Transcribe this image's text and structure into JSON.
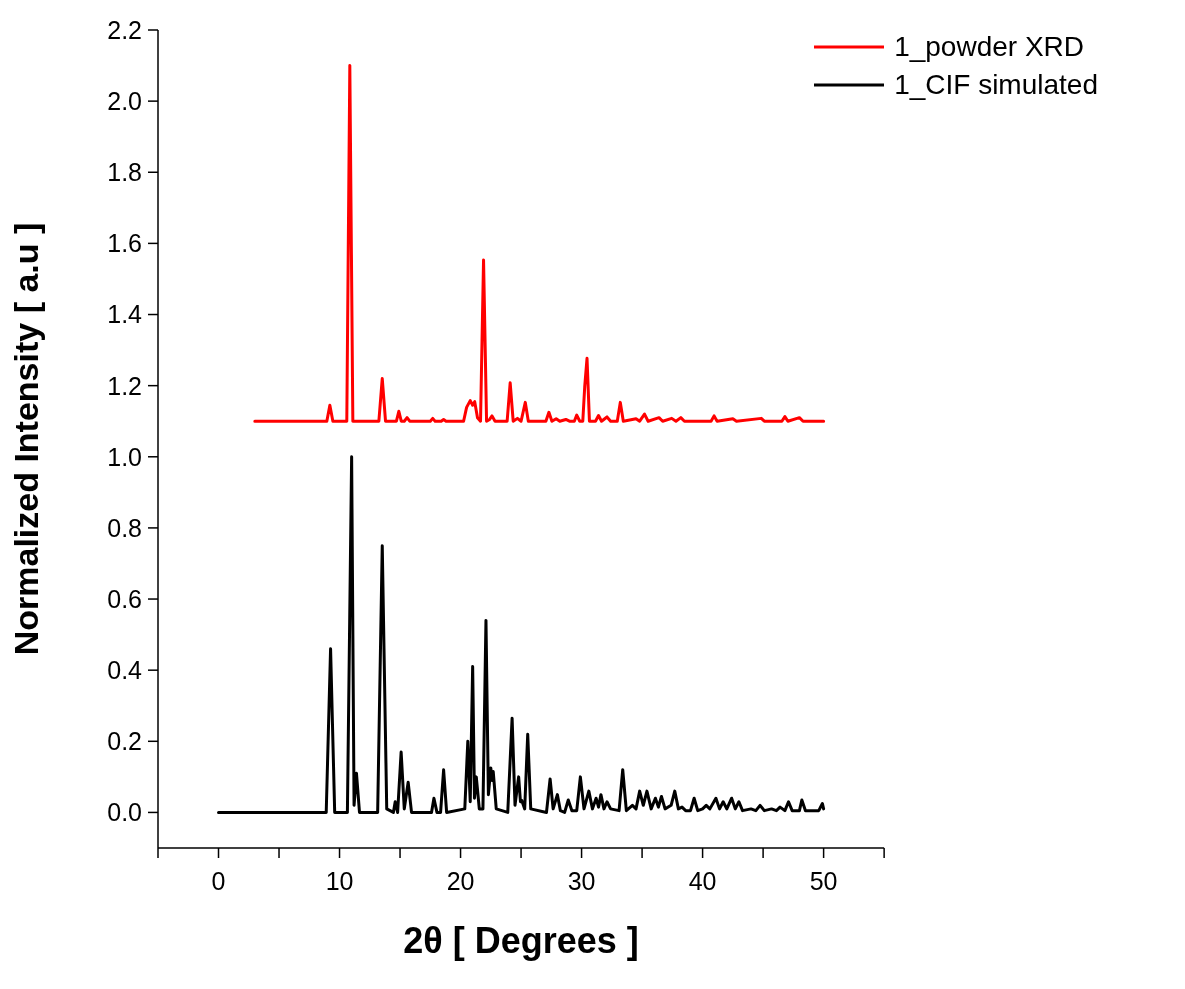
{
  "chart_data": {
    "type": "line",
    "xlabel": "2θ [ Degrees ]",
    "ylabel": "Normalized Intensity [ a.u ]",
    "xlim": [
      -5,
      55
    ],
    "ylim": [
      -0.1,
      2.2
    ],
    "xticks": [
      {
        "value": -5,
        "label": null
      },
      0,
      {
        "value": 5,
        "label": null
      },
      10,
      {
        "value": 15,
        "label": null
      },
      20,
      {
        "value": 25,
        "label": null
      },
      30,
      {
        "value": 35,
        "label": null
      },
      40,
      {
        "value": 45,
        "label": null
      },
      50,
      {
        "value": 55,
        "label": null
      }
    ],
    "yticks": [
      {
        "value": 0,
        "label": "0.0"
      },
      0.2,
      0.4,
      0.6,
      0.8,
      {
        "value": 1,
        "label": "1.0"
      },
      1.2,
      1.4,
      1.6,
      1.8,
      {
        "value": 2,
        "label": "2.0"
      },
      2.2
    ],
    "grid": false,
    "legend": "top right",
    "marker": "none",
    "line_style": "solid",
    "series": [
      {
        "name": "1_powder XRD",
        "color": "#ff0000",
        "x": [
          3,
          8.95,
          9.2,
          9.45,
          10.6,
          10.85,
          11.1,
          13.25,
          13.53,
          13.8,
          14.7,
          14.9,
          15.1,
          15.35,
          15.58,
          15.8,
          17.5,
          17.7,
          17.9,
          18.4,
          18.6,
          18.8,
          20.25,
          20.5,
          20.8,
          21.0,
          21.17,
          21.4,
          21.65,
          21.9,
          22.15,
          22.4,
          22.6,
          22.85,
          23.85,
          24.1,
          24.35,
          24.7,
          25.0,
          25.35,
          25.6,
          27.05,
          27.3,
          27.55,
          27.9,
          28.2,
          28.7,
          29.0,
          29.4,
          29.6,
          29.85,
          30.1,
          30.26,
          30.45,
          30.65,
          31.15,
          31.4,
          31.65,
          32.1,
          32.4,
          32.95,
          33.2,
          33.45,
          34.5,
          34.8,
          35.2,
          35.5,
          36.4,
          36.7,
          37.45,
          37.8,
          38.2,
          38.5,
          40.7,
          40.95,
          41.2,
          42.5,
          42.8,
          44.85,
          45.1,
          46.55,
          46.8,
          47.05,
          48.0,
          48.3,
          50.0
        ],
        "values": [
          1.1,
          1.1,
          1.145,
          1.1,
          1.1,
          2.1,
          1.1,
          1.1,
          1.22,
          1.1,
          1.1,
          1.128,
          1.1,
          1.1,
          1.11,
          1.1,
          1.1,
          1.108,
          1.1,
          1.1,
          1.105,
          1.1,
          1.1,
          1.139,
          1.158,
          1.145,
          1.155,
          1.11,
          1.1,
          1.553,
          1.1,
          1.105,
          1.115,
          1.1,
          1.1,
          1.208,
          1.1,
          1.108,
          1.1,
          1.153,
          1.1,
          1.1,
          1.125,
          1.1,
          1.107,
          1.1,
          1.105,
          1.1,
          1.1,
          1.117,
          1.1,
          1.1,
          1.197,
          1.277,
          1.1,
          1.1,
          1.116,
          1.1,
          1.112,
          1.1,
          1.1,
          1.153,
          1.1,
          1.107,
          1.1,
          1.12,
          1.1,
          1.11,
          1.1,
          1.108,
          1.1,
          1.11,
          1.1,
          1.1,
          1.115,
          1.1,
          1.107,
          1.1,
          1.108,
          1.1,
          1.1,
          1.113,
          1.1,
          1.11,
          1.1,
          1.1
        ]
      },
      {
        "name": "1_CIF simulated",
        "color": "#000000",
        "x": [
          0,
          8.9,
          9.26,
          9.6,
          10.65,
          11.0,
          11.2,
          11.4,
          11.65,
          13.15,
          13.53,
          13.9,
          14.45,
          14.6,
          14.8,
          15.09,
          15.35,
          15.67,
          15.95,
          17.6,
          17.8,
          18.05,
          18.35,
          18.6,
          18.85,
          20.35,
          20.6,
          20.8,
          21.0,
          21.15,
          21.3,
          21.55,
          21.85,
          22.1,
          22.3,
          22.5,
          22.6,
          22.7,
          22.95,
          23.9,
          24.26,
          24.5,
          24.8,
          24.95,
          25.05,
          25.3,
          25.55,
          25.8,
          27.1,
          27.4,
          27.65,
          28.0,
          28.25,
          28.6,
          28.9,
          29.2,
          29.6,
          29.9,
          30.2,
          30.6,
          30.9,
          31.2,
          31.4,
          31.6,
          31.85,
          32.1,
          32.4,
          33.1,
          33.4,
          33.7,
          34.2,
          34.5,
          34.8,
          35.1,
          35.4,
          35.75,
          36.1,
          36.35,
          36.6,
          36.9,
          37.4,
          37.7,
          38.0,
          38.3,
          38.6,
          39.0,
          39.3,
          39.6,
          40.0,
          40.3,
          40.6,
          41.1,
          41.4,
          41.7,
          42.0,
          42.4,
          42.7,
          43.0,
          43.3,
          44.0,
          44.4,
          44.75,
          45.1,
          45.7,
          46.1,
          46.4,
          46.8,
          47.1,
          47.4,
          48.0,
          48.2,
          48.5,
          49.6,
          49.9,
          50.0
        ],
        "values": [
          0,
          0,
          0.46,
          0,
          0,
          1.0,
          0.02,
          0.11,
          0,
          0,
          0.75,
          0.01,
          0,
          0.03,
          0,
          0.17,
          0.01,
          0.085,
          0,
          0,
          0.04,
          0,
          0,
          0.12,
          0,
          0.01,
          0.2,
          0.03,
          0.41,
          0.04,
          0.1,
          0.01,
          0.01,
          0.54,
          0.05,
          0.125,
          0.09,
          0.115,
          0.01,
          0,
          0.265,
          0.02,
          0.1,
          0.03,
          0.034,
          0.01,
          0.22,
          0.01,
          0,
          0.094,
          0.01,
          0.05,
          0.005,
          0,
          0.035,
          0.005,
          0.005,
          0.1,
          0.01,
          0.06,
          0.01,
          0.04,
          0.015,
          0.05,
          0.01,
          0.03,
          0.01,
          0.005,
          0.12,
          0.005,
          0.02,
          0.01,
          0.06,
          0.02,
          0.06,
          0.01,
          0.04,
          0.015,
          0.045,
          0.01,
          0.02,
          0.06,
          0.01,
          0.015,
          0.005,
          0.005,
          0.04,
          0.005,
          0.01,
          0.02,
          0.01,
          0.04,
          0.01,
          0.03,
          0.01,
          0.04,
          0.01,
          0.03,
          0.005,
          0.01,
          0.005,
          0.02,
          0.005,
          0.01,
          0.005,
          0.015,
          0.005,
          0.03,
          0.005,
          0.005,
          0.035,
          0.005,
          0.005,
          0.025,
          0.01
        ]
      }
    ]
  }
}
